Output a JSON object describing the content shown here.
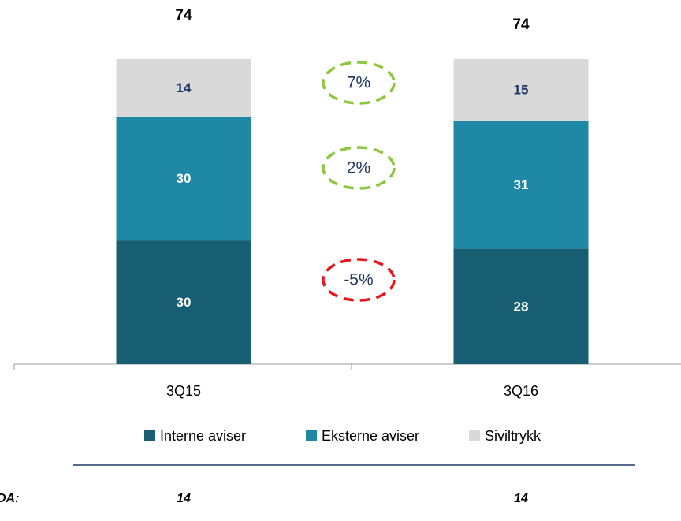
{
  "chart_data": {
    "type": "stacked_bar",
    "categories": [
      "3Q15",
      "3Q16"
    ],
    "series": [
      {
        "name": "Interne aviser",
        "color": "#175e73",
        "label_color": "#ffffff",
        "values": [
          30,
          28
        ]
      },
      {
        "name": "Eksterne aviser",
        "color": "#1f88a5",
        "label_color": "#ffffff",
        "values": [
          30,
          31
        ]
      },
      {
        "name": "Siviltrykk",
        "color": "#d9d9d9",
        "label_color": "#1f3864",
        "values": [
          14,
          15
        ]
      }
    ],
    "totals": [
      74,
      74
    ],
    "annotations": [
      {
        "text": "7%",
        "color": "#8dc63f"
      },
      {
        "text": "2%",
        "color": "#8dc63f"
      },
      {
        "text": "-5%",
        "color": "#e8161b"
      }
    ],
    "footer": {
      "label": "DA:",
      "values": [
        14,
        14
      ]
    }
  }
}
